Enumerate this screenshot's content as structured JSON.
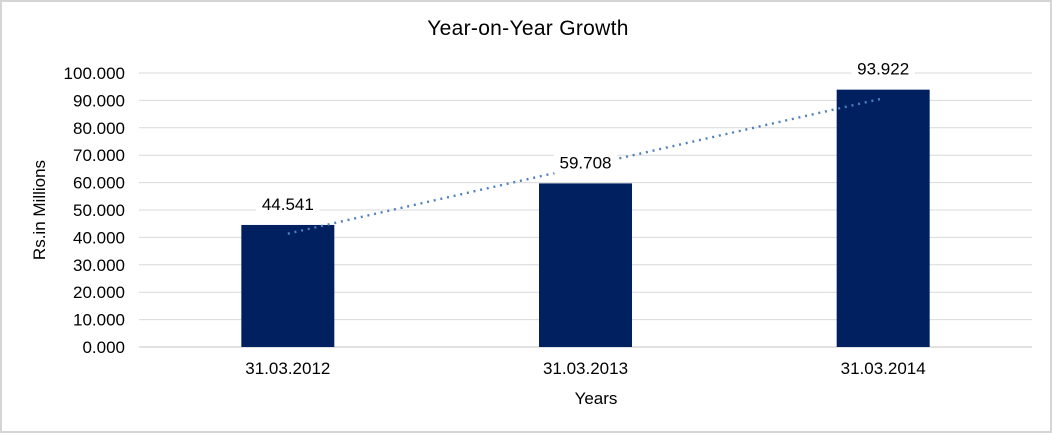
{
  "chart_data": {
    "type": "bar",
    "title": "Year-on-Year Growth",
    "xlabel": "Years",
    "ylabel": "Rs.in Millions",
    "categories": [
      "31.03.2012",
      "31.03.2013",
      "31.03.2014"
    ],
    "values": [
      44.541,
      59.708,
      93.922
    ],
    "data_labels": [
      "44.541",
      "59.708",
      "93.922"
    ],
    "y_ticks": [
      "0.000",
      "10.000",
      "20.000",
      "30.000",
      "40.000",
      "50.000",
      "60.000",
      "70.000",
      "80.000",
      "90.000",
      "100.000"
    ],
    "y_tick_step": 10,
    "ylim": [
      0,
      100
    ],
    "grid": true,
    "legend": "none",
    "bar_color": "#002060",
    "trendline": {
      "type": "linear",
      "style": "dotted",
      "color": "#4f81bd"
    },
    "colors": {
      "grid": "#d9d9d9",
      "axis": "#c6c6c6",
      "text": "#000000",
      "background": "#ffffff",
      "canvas_border": "#d5d5d5"
    }
  }
}
